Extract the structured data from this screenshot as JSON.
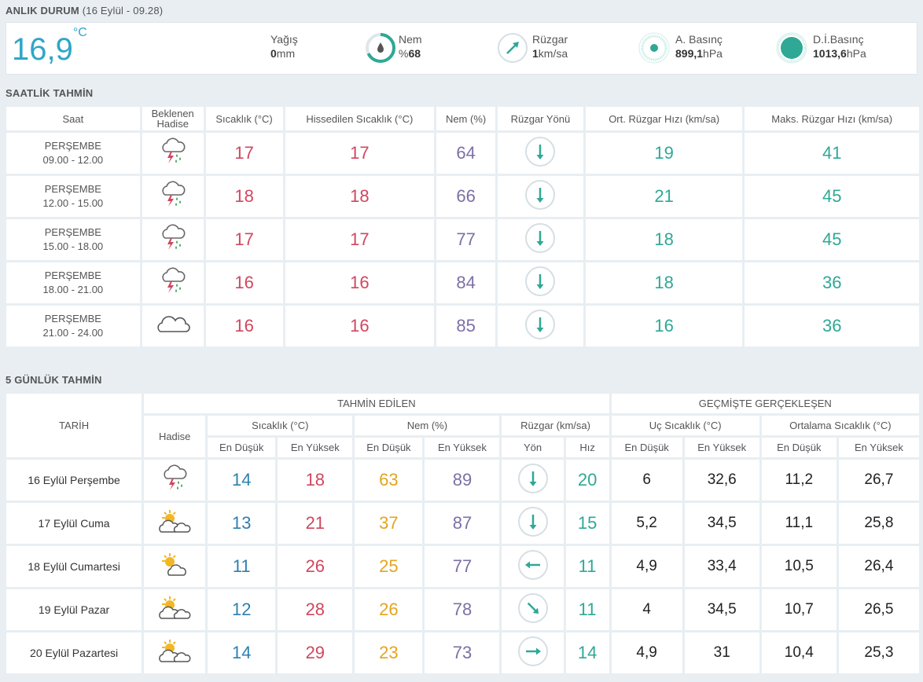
{
  "current": {
    "title": "ANLIK DURUM",
    "subtitle": "(16 Eylül - 09.28)",
    "temp": "16,9",
    "temp_unit": "°C",
    "precip_label": "Yağış",
    "precip_value": "0",
    "precip_unit": "mm",
    "humidity_label": "Nem",
    "humidity_prefix": "%",
    "humidity_value": "68",
    "humidity_fraction": 0.68,
    "wind_label": "Rüzgar",
    "wind_value": "1",
    "wind_unit": "km/sa",
    "pressure_label": "A. Basınç",
    "pressure_value": "899,1",
    "pressure_unit": "hPa",
    "sea_pressure_label": "D.İ.Basınç",
    "sea_pressure_value": "1013,6",
    "sea_pressure_unit": "hPa"
  },
  "hourly": {
    "title": "SAATLİK TAHMİN",
    "headers": [
      "Saat",
      "Beklenen Hadise",
      "Sıcaklık (°C)",
      "Hissedilen Sıcaklık (°C)",
      "Nem (%)",
      "Rüzgar Yönü",
      "Ort. Rüzgar Hızı (km/sa)",
      "Maks. Rüzgar Hızı (km/sa)"
    ],
    "header_beklenen": "Beklenen",
    "header_hadise": "Hadise",
    "rows": [
      {
        "day": "PERŞEMBE",
        "time": "09.00 - 12.00",
        "icon": "thunder-rain-icon",
        "temp": "17",
        "feels": "17",
        "hum": "64",
        "dir": "south",
        "avg": "19",
        "max": "41"
      },
      {
        "day": "PERŞEMBE",
        "time": "12.00 - 15.00",
        "icon": "thunder-rain-icon",
        "temp": "18",
        "feels": "18",
        "hum": "66",
        "dir": "south",
        "avg": "21",
        "max": "45"
      },
      {
        "day": "PERŞEMBE",
        "time": "15.00 - 18.00",
        "icon": "thunder-rain-icon",
        "temp": "17",
        "feels": "17",
        "hum": "77",
        "dir": "south",
        "avg": "18",
        "max": "45"
      },
      {
        "day": "PERŞEMBE",
        "time": "18.00 - 21.00",
        "icon": "thunder-rain-icon",
        "temp": "16",
        "feels": "16",
        "hum": "84",
        "dir": "south",
        "avg": "18",
        "max": "36"
      },
      {
        "day": "PERŞEMBE",
        "time": "21.00 - 24.00",
        "icon": "cloud-icon",
        "temp": "16",
        "feels": "16",
        "hum": "85",
        "dir": "south",
        "avg": "16",
        "max": "36"
      }
    ]
  },
  "daily": {
    "title": "5 GÜNLÜK TAHMİN",
    "h_date": "TARİH",
    "h_forecast": "TAHMİN EDİLEN",
    "h_past": "GEÇMİŞTE GERÇEKLEŞEN",
    "h_hadise": "Hadise",
    "h_temp": "Sıcaklık (°C)",
    "h_hum": "Nem (%)",
    "h_wind": "Rüzgar (km/sa)",
    "h_extreme": "Uç Sıcaklık (°C)",
    "h_avg": "Ortalama Sıcaklık (°C)",
    "h_min": "En Düşük",
    "h_max": "En Yüksek",
    "h_dir": "Yön",
    "h_speed": "Hız",
    "rows": [
      {
        "date": "16 Eylül Perşembe",
        "icon": "thunder-rain-icon",
        "tmin": "14",
        "tmax": "18",
        "hmin": "63",
        "hmax": "89",
        "dir": "south",
        "speed": "20",
        "emin": "6",
        "emax": "32,6",
        "amin": "11,2",
        "amax": "26,7"
      },
      {
        "date": "17 Eylül Cuma",
        "icon": "partly-cloudy-icon",
        "tmin": "13",
        "tmax": "21",
        "hmin": "37",
        "hmax": "87",
        "dir": "south",
        "speed": "15",
        "emin": "5,2",
        "emax": "34,5",
        "amin": "11,1",
        "amax": "25,8"
      },
      {
        "date": "18 Eylül Cumartesi",
        "icon": "sun-cloud-icon",
        "tmin": "11",
        "tmax": "26",
        "hmin": "25",
        "hmax": "77",
        "dir": "west",
        "speed": "11",
        "emin": "4,9",
        "emax": "33,4",
        "amin": "10,5",
        "amax": "26,4"
      },
      {
        "date": "19 Eylül Pazar",
        "icon": "partly-cloudy-icon",
        "tmin": "12",
        "tmax": "28",
        "hmin": "26",
        "hmax": "78",
        "dir": "south-east",
        "speed": "11",
        "emin": "4",
        "emax": "34,5",
        "amin": "10,7",
        "amax": "26,5"
      },
      {
        "date": "20 Eylül Pazartesi",
        "icon": "partly-cloudy-icon",
        "tmin": "14",
        "tmax": "29",
        "hmin": "23",
        "hmax": "73",
        "dir": "east",
        "speed": "14",
        "emin": "4,9",
        "emax": "31",
        "amin": "10,4",
        "amax": "25,3"
      }
    ]
  }
}
